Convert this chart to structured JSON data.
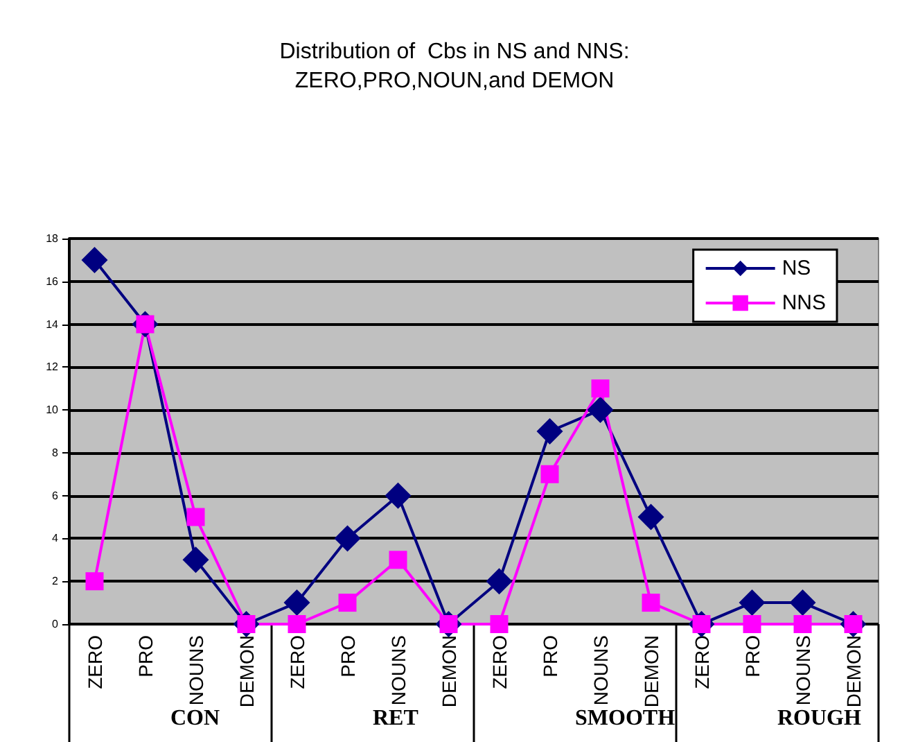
{
  "chart_data": {
    "type": "line",
    "title": "Distribution of  Cbs in NS and NNS:\nZERO,PRO,NOUN,and DEMON",
    "categories": [
      "ZERO",
      "PRO",
      "NOUNS",
      "DEMON",
      "ZERO",
      "PRO",
      "NOUNS",
      "DEMON",
      "ZERO",
      "PRO",
      "NOUNS",
      "DEMON",
      "ZERO",
      "PRO",
      "NOUNS",
      "DEMON"
    ],
    "series": [
      {
        "name": "NS",
        "color": "#000080",
        "marker": "diamond",
        "values": [
          17,
          14,
          3,
          0,
          1,
          4,
          6,
          0,
          2,
          9,
          10,
          5,
          0,
          1,
          1,
          0
        ]
      },
      {
        "name": "NNS",
        "color": "#ff00ff",
        "marker": "square",
        "values": [
          2,
          14,
          5,
          0,
          0,
          1,
          3,
          0,
          0,
          7,
          11,
          1,
          0,
          0,
          0,
          0
        ]
      }
    ],
    "annotations": [
      "CON",
      "RET",
      "SMOOTH",
      "ROUGH"
    ],
    "ylim": [
      0,
      18
    ],
    "yticks": [
      0,
      2,
      4,
      6,
      8,
      10,
      12,
      14,
      16,
      18
    ],
    "grid": "y",
    "legend": "top right"
  }
}
